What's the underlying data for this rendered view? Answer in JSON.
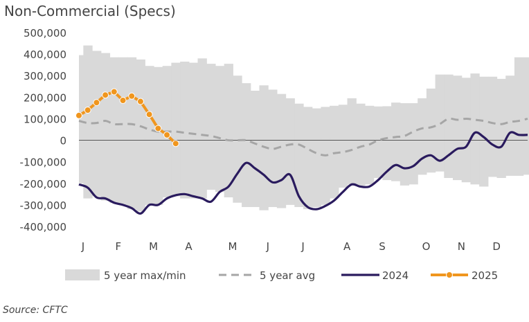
{
  "title": "Non-Commercial (Specs)",
  "source": "Source: CFTC",
  "colors": {
    "band": "#d9d9d9",
    "avg": "#a6a6a6",
    "y2024": "#2a1b5e",
    "y2025": "#f0961e",
    "zero_line": "#555555"
  },
  "chart_data": {
    "type": "area",
    "title": "Non-Commercial (Specs)",
    "xlabel": "",
    "ylabel": "",
    "ylim": [
      -400000,
      500000
    ],
    "y_ticks": [
      500000,
      400000,
      300000,
      200000,
      100000,
      0,
      -100000,
      -200000,
      -300000,
      -400000
    ],
    "y_tick_labels": [
      "500,000",
      "400,000",
      "300,000",
      "200,000",
      "100,000",
      "0",
      "-100,000",
      "-200,000",
      "-300,000",
      "-400,000"
    ],
    "x_ticks": [
      0,
      4,
      8,
      12,
      17,
      21,
      25,
      30,
      34,
      39,
      43,
      47
    ],
    "x_tick_labels": [
      "J",
      "F",
      "M",
      "A",
      "M",
      "J",
      "J",
      "A",
      "S",
      "O",
      "N",
      "D"
    ],
    "x_range": [
      0,
      51
    ],
    "legend_position": "bottom",
    "grid": false,
    "series": [
      {
        "name": "5 year max/min",
        "type": "band",
        "week": [
          0,
          1,
          2,
          3,
          4,
          5,
          6,
          7,
          8,
          9,
          10,
          11,
          12,
          13,
          14,
          15,
          16,
          17,
          18,
          19,
          20,
          21,
          22,
          23,
          24,
          25,
          26,
          27,
          28,
          29,
          30,
          31,
          32,
          33,
          34,
          35,
          36,
          37,
          38,
          39,
          40,
          41,
          42,
          43,
          44,
          45,
          46,
          47,
          48,
          49,
          50,
          51
        ],
        "max": [
          395000,
          440000,
          415000,
          405000,
          385000,
          385000,
          385000,
          375000,
          345000,
          340000,
          345000,
          360000,
          365000,
          360000,
          380000,
          355000,
          345000,
          355000,
          300000,
          265000,
          230000,
          255000,
          235000,
          215000,
          195000,
          170000,
          155000,
          148000,
          155000,
          160000,
          165000,
          195000,
          170000,
          160000,
          157000,
          158000,
          175000,
          172000,
          172000,
          195000,
          240000,
          305000,
          305000,
          300000,
          290000,
          310000,
          295000,
          295000,
          285000,
          300000,
          385000,
          385000
        ],
        "min": [
          -200000,
          -270000,
          -260000,
          -280000,
          -290000,
          -300000,
          -320000,
          -330000,
          -300000,
          -300000,
          -265000,
          -260000,
          -270000,
          -270000,
          -270000,
          -230000,
          -240000,
          -265000,
          -290000,
          -310000,
          -310000,
          -325000,
          -310000,
          -315000,
          -300000,
          -310000,
          -320000,
          -310000,
          -300000,
          -270000,
          -220000,
          -205000,
          -210000,
          -205000,
          -175000,
          -185000,
          -190000,
          -210000,
          -205000,
          -160000,
          -150000,
          -145000,
          -175000,
          -185000,
          -195000,
          -205000,
          -215000,
          -170000,
          -175000,
          -165000,
          -165000,
          -160000
        ]
      },
      {
        "name": "5 year avg",
        "type": "line",
        "week": [
          0,
          1,
          2,
          3,
          4,
          5,
          6,
          7,
          8,
          9,
          10,
          11,
          12,
          13,
          14,
          15,
          16,
          17,
          18,
          19,
          20,
          21,
          22,
          23,
          24,
          25,
          26,
          27,
          28,
          29,
          30,
          31,
          32,
          33,
          34,
          35,
          36,
          37,
          38,
          39,
          40,
          41,
          42,
          43,
          44,
          45,
          46,
          47,
          48,
          49,
          50,
          51
        ],
        "values": [
          90000,
          80000,
          80000,
          90000,
          75000,
          75000,
          75000,
          65000,
          50000,
          40000,
          40000,
          40000,
          35000,
          30000,
          25000,
          20000,
          10000,
          0,
          0,
          0,
          -15000,
          -30000,
          -40000,
          -30000,
          -20000,
          -20000,
          -40000,
          -60000,
          -70000,
          -60000,
          -55000,
          -45000,
          -30000,
          -20000,
          0,
          10000,
          15000,
          20000,
          40000,
          55000,
          60000,
          75000,
          100000,
          95000,
          100000,
          95000,
          90000,
          80000,
          75000,
          85000,
          90000,
          100000
        ]
      },
      {
        "name": "2024",
        "type": "line",
        "week": [
          0,
          1,
          2,
          3,
          4,
          5,
          6,
          7,
          8,
          9,
          10,
          11,
          12,
          13,
          14,
          15,
          16,
          17,
          18,
          19,
          20,
          21,
          22,
          23,
          24,
          25,
          26,
          27,
          28,
          29,
          30,
          31,
          32,
          33,
          34,
          35,
          36,
          37,
          38,
          39,
          40,
          41,
          42,
          43,
          44,
          45,
          46,
          47,
          48,
          49,
          50,
          51
        ],
        "values": [
          -205000,
          -220000,
          -265000,
          -270000,
          -290000,
          -300000,
          -315000,
          -340000,
          -300000,
          -300000,
          -270000,
          -255000,
          -250000,
          -260000,
          -270000,
          -285000,
          -240000,
          -215000,
          -155000,
          -105000,
          -130000,
          -160000,
          -195000,
          -185000,
          -160000,
          -260000,
          -310000,
          -320000,
          -305000,
          -280000,
          -240000,
          -205000,
          -215000,
          -215000,
          -185000,
          -145000,
          -115000,
          -130000,
          -120000,
          -85000,
          -70000,
          -95000,
          -70000,
          -40000,
          -30000,
          35000,
          15000,
          -20000,
          -30000,
          35000,
          25000,
          25000
        ]
      },
      {
        "name": "2025",
        "type": "line",
        "markers": true,
        "week": [
          0,
          1,
          2,
          3,
          4,
          5,
          6,
          7,
          8,
          9,
          10,
          11
        ],
        "values": [
          115000,
          140000,
          175000,
          210000,
          225000,
          185000,
          205000,
          180000,
          120000,
          55000,
          25000,
          -15000
        ]
      }
    ]
  }
}
